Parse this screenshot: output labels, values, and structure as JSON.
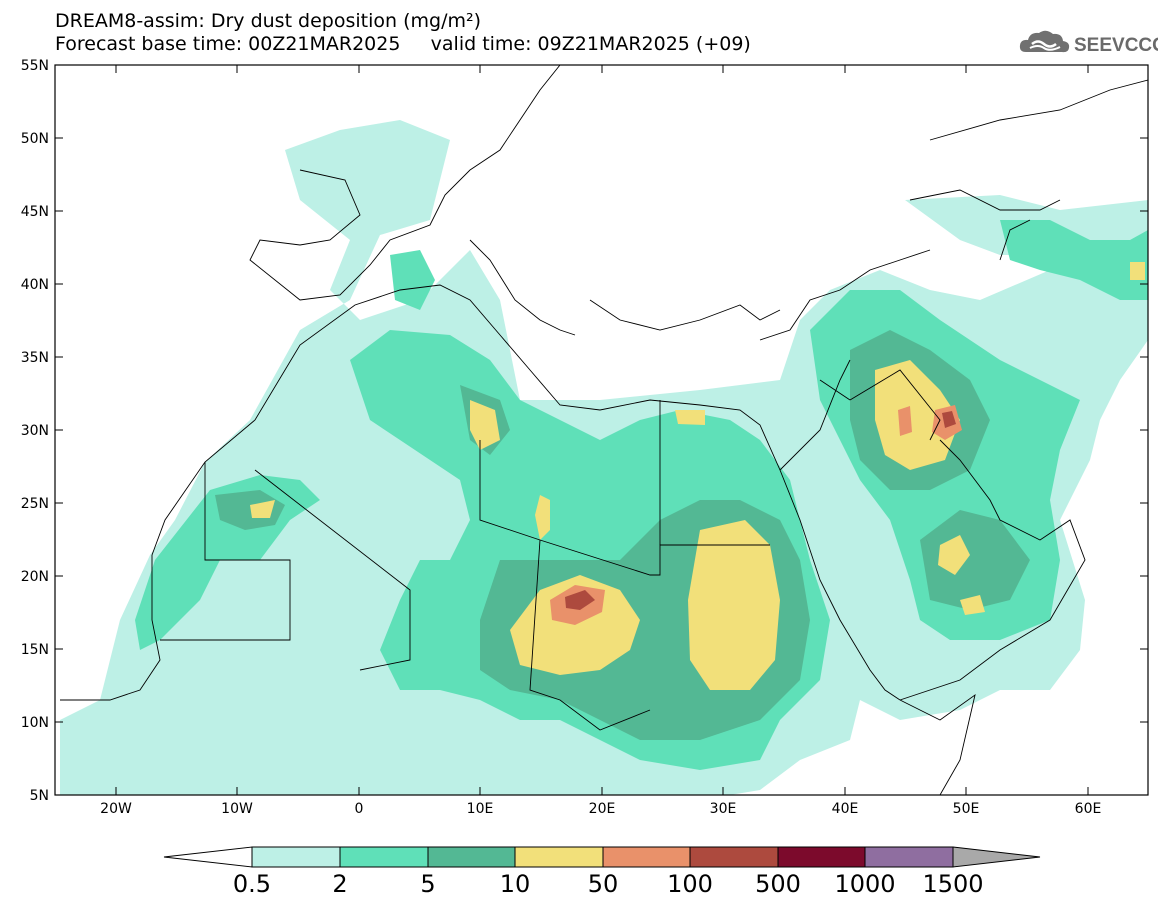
{
  "header": {
    "title_line1": "DREAM8-assim: Dry dust deposition (mg/m²)",
    "title_line2": "Forecast base time: 00Z21MAR2025     valid time: 09Z21MAR2025 (+09)",
    "logo_text": "SEEVCCC"
  },
  "map": {
    "lon_range": [
      -25,
      65
    ],
    "lat_range": [
      5,
      55
    ],
    "lat_labels": [
      "55N",
      "50N",
      "45N",
      "40N",
      "35N",
      "30N",
      "25N",
      "20N",
      "15N",
      "10N",
      "5N"
    ],
    "lon_labels": [
      "20W",
      "10W",
      "0",
      "10E",
      "20E",
      "30E",
      "40E",
      "50E",
      "60E"
    ]
  },
  "colorbar": {
    "labels": [
      "0.5",
      "2",
      "5",
      "10",
      "50",
      "100",
      "500",
      "1000",
      "1500"
    ],
    "colors": [
      "#bdf0e6",
      "#5fe0b8",
      "#53b894",
      "#f2e07a",
      "#e9916a",
      "#ad4a3e",
      "#7c0a2c",
      "#8f6ea0"
    ],
    "under_color": "#ffffff",
    "over_color": "#a9a9a9"
  }
}
